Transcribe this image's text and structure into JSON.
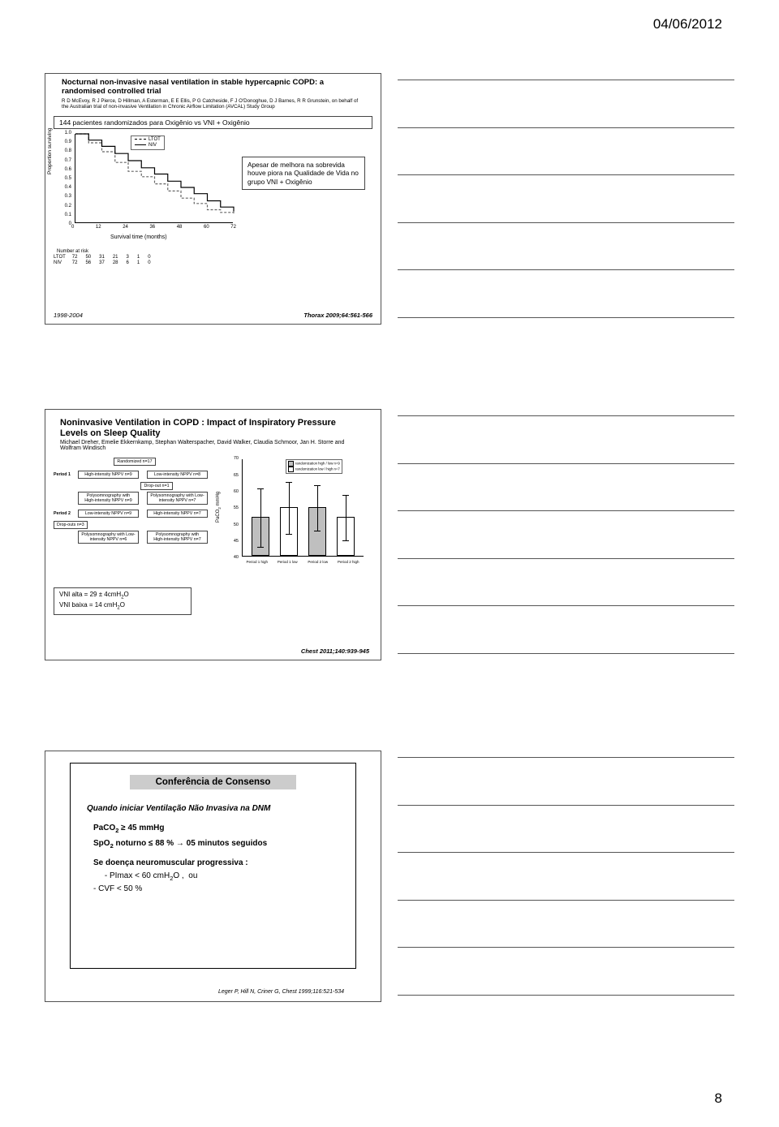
{
  "header": {
    "date": "04/06/2012"
  },
  "page_number": "8",
  "note_lines_count": 6,
  "slide1": {
    "title": "Nocturnal non-invasive nasal ventilation in stable hypercapnic COPD: a randomised controlled trial",
    "authors": "R D McEvoy, R J Pierce, D Hillman, A Esterman, E E Ellis, P G Catcheside, F J O'Donoghue, D J Barnes, R R Grunstein, on behalf of the Australian trial of non-invasive Ventilation in Chronic Airflow Limitation (AVCAL) Study Group",
    "patient_box": "144 pacientes randomizados para Oxigênio vs VNI + Oxigênio",
    "note_box": "Apesar de melhora na sobrevida houve piora na Qualidade de Vida no grupo VNI + Oxigênio",
    "km_chart": {
      "type": "line",
      "ylabel": "Proportion surviving",
      "ytick_labels": [
        "1.0",
        "0.9",
        "0.8",
        "0.7",
        "0.6",
        "0.5",
        "0.4",
        "0.3",
        "0.2",
        "0.1",
        "0"
      ],
      "ylim": [
        0,
        1.0
      ],
      "xlabel": "Survival time (months)",
      "xtick_labels": [
        "0",
        "12",
        "24",
        "36",
        "48",
        "60",
        "72"
      ],
      "xlim": [
        0,
        72
      ],
      "legend_items": [
        "LTOT",
        "NIV"
      ],
      "series": [
        {
          "name": "LTOT",
          "dash": "dashed",
          "color": "#666666",
          "points": [
            [
              0,
              1.0
            ],
            [
              6,
              0.9
            ],
            [
              12,
              0.8
            ],
            [
              18,
              0.68
            ],
            [
              24,
              0.58
            ],
            [
              30,
              0.52
            ],
            [
              36,
              0.44
            ],
            [
              42,
              0.36
            ],
            [
              48,
              0.28
            ],
            [
              54,
              0.22
            ],
            [
              60,
              0.15
            ],
            [
              66,
              0.12
            ],
            [
              72,
              0.1
            ]
          ]
        },
        {
          "name": "NIV",
          "dash": "solid",
          "color": "#000000",
          "points": [
            [
              0,
              1.0
            ],
            [
              6,
              0.93
            ],
            [
              12,
              0.86
            ],
            [
              18,
              0.78
            ],
            [
              24,
              0.7
            ],
            [
              30,
              0.62
            ],
            [
              36,
              0.55
            ],
            [
              42,
              0.47
            ],
            [
              48,
              0.4
            ],
            [
              54,
              0.33
            ],
            [
              60,
              0.25
            ],
            [
              66,
              0.18
            ],
            [
              72,
              0.13
            ]
          ]
        }
      ],
      "at_risk": {
        "label": "Number at risk",
        "rows": [
          {
            "name": "LTOT",
            "values": [
              "72",
              "50",
              "31",
              "21",
              "3",
              "1",
              "0"
            ]
          },
          {
            "name": "NIV",
            "values": [
              "72",
              "56",
              "37",
              "28",
              "6",
              "1",
              "0"
            ]
          }
        ]
      },
      "background_color": "#ffffff"
    },
    "year_range": "1998-2004",
    "citation": "Thorax 2009;64:561-566"
  },
  "slide2": {
    "title": "Noninvasive Ventilation in COPD : Impact of Inspiratory Pressure Levels on Sleep Quality",
    "authors": "Michael Dreher, Emelie Ekkernkamp, Stephan Walterspacher, David Walker, Claudia Schmoor, Jan H. Storre and Wolfram Windisch",
    "flow": {
      "randomized": "Randomized n=17",
      "period1_label": "Period 1",
      "p1_left": "High-intensity NPPV n=9",
      "p1_right": "Low-intensity NPPV n=8",
      "dropout1": "Drop-out n=1",
      "psg1_left": "Polysomnography with High-intensity NPPV n=9",
      "psg1_right": "Polysomnography with Low-intensity NPPV n=7",
      "period2_label": "Period 2",
      "p2_left": "Low-intensity NPPV n=9",
      "p2_right": "High-intensity NPPV n=7",
      "dropout2": "Drop-outs n=3",
      "psg2_left": "Polysomnography with Low-intensity NPPV n=6",
      "psg2_right": "Polysomnography with High-intensity NPPV n=7"
    },
    "bar_chart": {
      "type": "bar",
      "ylabel": "PaCO₂ mmHg",
      "ylim": [
        40,
        70
      ],
      "ytick_labels": [
        "70",
        "65",
        "60",
        "55",
        "50",
        "45",
        "40"
      ],
      "categories": [
        "Period 1 high",
        "Period 1 low",
        "Period 2 low",
        "Period 2 high"
      ],
      "bars": [
        {
          "value": 52,
          "err": 9,
          "color": "#bfbfbf"
        },
        {
          "value": 55,
          "err": 8,
          "color": "#ffffff"
        },
        {
          "value": 55,
          "err": 7,
          "color": "#bfbfbf"
        },
        {
          "value": 52,
          "err": 7,
          "color": "#ffffff"
        }
      ],
      "border_color": "#000000",
      "legend": [
        "randomization high / low n=9",
        "randomization low / high n=7"
      ]
    },
    "note_box_line1": "VNI alta = 29 ± 4cmH₂O",
    "note_box_line2": "VNI baixa = 14 cmH₂O",
    "citation": "Chest 2011;140:939-945"
  },
  "slide3": {
    "header": "Conferência de Consenso",
    "question": "Quando iniciar Ventilação Não Invasiva na DNM",
    "line1_prefix": "PaCO₂",
    "line1_value": "  ≥  45 mmHg",
    "line2_prefix": "SpO₂ noturno ≤ 88 %  →",
    "line2_value": "   05 minutos seguidos",
    "line3": "Se doença neuromuscular progressiva :",
    "line3a": "      - PImax < 60 cmH₂O ,  ou",
    "line3b": "      - CVF < 50 %",
    "citation": "Leger P, Hill N, Criner G, Chest 1999;116:521-534"
  }
}
